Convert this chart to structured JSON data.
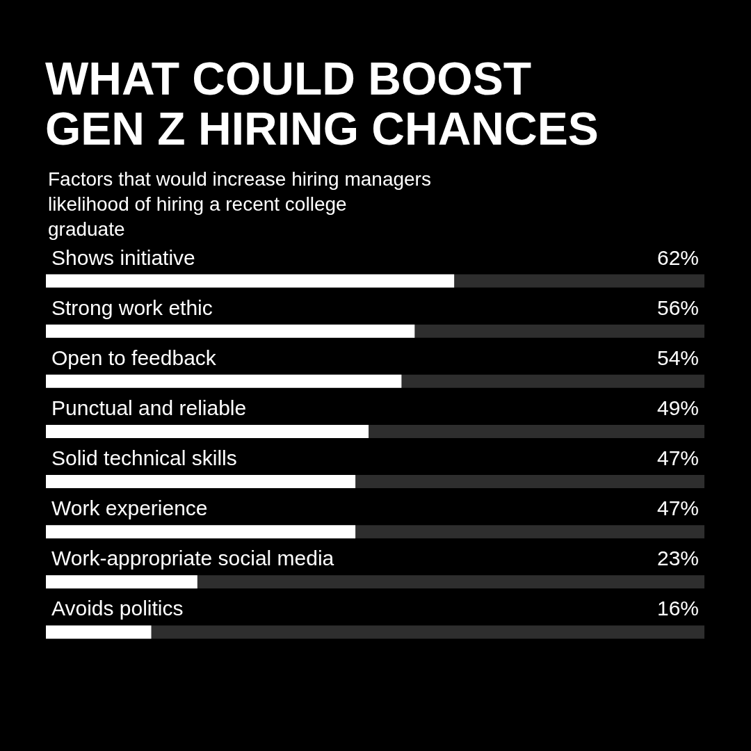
{
  "chart_data": {
    "type": "bar",
    "orientation": "horizontal",
    "title": "WHAT COULD BOOST GEN Z HIRING CHANCES",
    "subtitle": "Factors that would increase hiring managers likelihood of hiring a recent college graduate",
    "categories": [
      "Shows initiative",
      "Strong work ethic",
      "Open to feedback",
      "Punctual and reliable",
      "Solid technical skills",
      "Work experience",
      "Work-appropriate social media",
      "Avoids politics"
    ],
    "values": [
      62,
      56,
      54,
      49,
      47,
      47,
      23,
      16
    ],
    "value_labels": [
      "62%",
      "56%",
      "54%",
      "49%",
      "47%",
      "47%",
      "23%",
      "16%"
    ],
    "color": "#ffffff",
    "xlim": [
      0,
      100
    ],
    "tick_labels": "y"
  }
}
